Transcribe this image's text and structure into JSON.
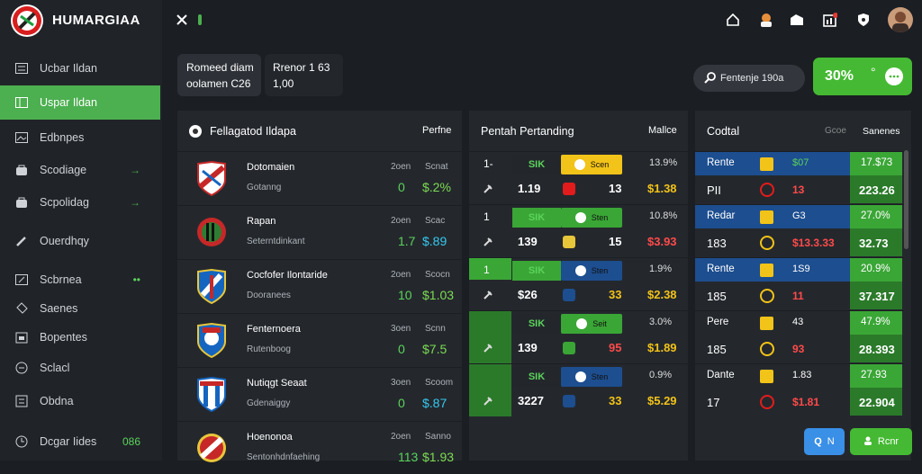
{
  "app": {
    "brand": "НUМАRGIАА"
  },
  "sidebar": {
    "items": [
      {
        "label": "Ucbar Ildan"
      },
      {
        "label": "Uspar Ildan"
      },
      {
        "label": "Edbnpes"
      },
      {
        "label": "Scodiage"
      },
      {
        "label": "Scpolidag"
      },
      {
        "label": "Ouerdhqy"
      },
      {
        "label": "Scbrnea",
        "badge": "••"
      },
      {
        "label": "Saenes"
      },
      {
        "label": "Bopentes"
      },
      {
        "label": "Sclacl"
      },
      {
        "label": "Obdna"
      },
      {
        "label": "Dcgar Iides",
        "badge": "086"
      }
    ]
  },
  "cards": {
    "c1": {
      "line1": "Romeed diam",
      "line2": "oolamen C26"
    },
    "c2": {
      "line1": "Rrenor 1 63",
      "line2": "1,00"
    }
  },
  "search": {
    "placeholder": "Fentenje 190a"
  },
  "promo": {
    "value": "30%",
    "mark": "°"
  },
  "featured": {
    "title": "Fellagatod Ildapa",
    "col": "Perfne",
    "rows": [
      {
        "name": "Dotomaien",
        "sub": "Gotanng",
        "c1": "2oen",
        "c2": "Scnat",
        "v1": "0",
        "v2": "$.2%"
      },
      {
        "name": "Rapan",
        "sub": "Seterntdinkant",
        "c1": "2oen",
        "c2": "Scac",
        "v1": "1.7",
        "v2": "$.89"
      },
      {
        "name": "Cocfofer Ilontaride",
        "sub": "Dooranees",
        "c1": "2oen",
        "c2": "Scocn",
        "v1": "10",
        "v2": "$1.03"
      },
      {
        "name": "Fenternoera",
        "sub": "Rutenboog",
        "c1": "3oen",
        "c2": "Scnn",
        "v1": "0",
        "v2": "$7.5"
      },
      {
        "name": "Nutiqgt Seaat",
        "sub": "Gdenaiggy",
        "c1": "3oen",
        "c2": "Scoom",
        "v1": "0",
        "v2": "$.87"
      },
      {
        "name": "Hoenonoa",
        "sub": "Sentonhdnfaehing",
        "c1": "2oen",
        "c2": "Sanno",
        "v1": "113",
        "v2": "$1.93"
      }
    ]
  },
  "betting": {
    "title": "Pentah Pertanding",
    "col": "Mallce",
    "rows": [
      {
        "a": "1-",
        "b": "SIK",
        "b2": "1.19",
        "team": "Scen",
        "tnum": "13",
        "odd": "13.9%",
        "odd2": "$1.38"
      },
      {
        "a": "1",
        "b": "SIK",
        "b2": "139",
        "team": "Sten",
        "tnum": "15",
        "odd": "10.8%",
        "odd2": "$3.93"
      },
      {
        "a": "1",
        "b": "SIK",
        "b2": "$26",
        "team": "Sten",
        "tnum": "33",
        "odd": "1.9%",
        "odd2": "$2.38"
      },
      {
        "a": "",
        "b": "SIK",
        "b2": "139",
        "team": "Seit",
        "tnum": "95",
        "odd": "3.0%",
        "odd2": "$1.89"
      },
      {
        "a": "",
        "b": "SIK",
        "b2": "3227",
        "team": "Sten",
        "tnum": "33",
        "odd": "0.9%",
        "odd2": "$5.29"
      }
    ]
  },
  "stats": {
    "title": "Codtal",
    "col1": "Gcoe",
    "col2": "Sanenes",
    "rows": [
      {
        "name": "Rente",
        "n1": "$07",
        "v": "17.$73",
        "name2": "PII",
        "n2": "13",
        "v2": "223.26"
      },
      {
        "name": "Redar",
        "n1": "G3",
        "v": "27.0%",
        "name2": "183",
        "n2": "$13.3.33",
        "v2": "32.73"
      },
      {
        "name": "Rente",
        "n1": "1S9",
        "v": "20.9%",
        "name2": "185",
        "n2": "11",
        "v2": "37.317"
      },
      {
        "name": "Pere",
        "n1": "43",
        "v": "47.9%",
        "name2": "185",
        "n2": "93",
        "v2": "28.393"
      },
      {
        "name": "Dante",
        "n1": "1.83",
        "v": "27.93",
        "name2": "17",
        "n2": "$1.81",
        "v2": "22.904"
      }
    ]
  },
  "buttons": {
    "search_label": "Q",
    "search_extra": "N",
    "join_label": "Rcnr"
  },
  "colors": {
    "accent": "#4caf50",
    "panel": "#24282d",
    "blue": "#1d4e8f",
    "red": "#e21c1c",
    "yellow": "#f2c318"
  }
}
